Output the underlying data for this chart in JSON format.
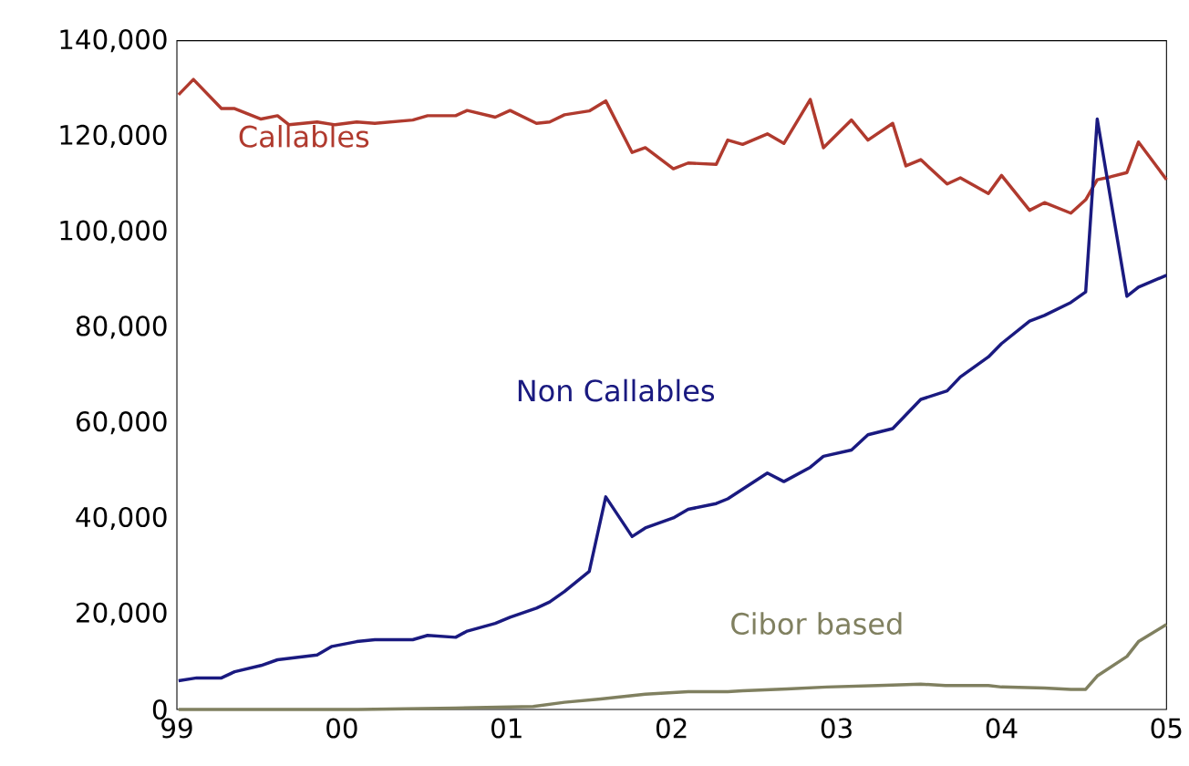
{
  "chart_data": {
    "type": "line",
    "xlim": [
      1999,
      2005
    ],
    "ylim": [
      0,
      140000
    ],
    "xticks": [
      {
        "value": 1999,
        "label": "99"
      },
      {
        "value": 2000,
        "label": "00"
      },
      {
        "value": 2001,
        "label": "01"
      },
      {
        "value": 2002,
        "label": "02"
      },
      {
        "value": 2003,
        "label": "03"
      },
      {
        "value": 2004,
        "label": "04"
      },
      {
        "value": 2005,
        "label": "05"
      }
    ],
    "yticks": [
      {
        "value": 0,
        "label": "0"
      },
      {
        "value": 20000,
        "label": "20,000"
      },
      {
        "value": 40000,
        "label": "40,000"
      },
      {
        "value": 60000,
        "label": "60,000"
      },
      {
        "value": 80000,
        "label": "80,000"
      },
      {
        "value": 100000,
        "label": "100,000"
      },
      {
        "value": 120000,
        "label": "120,000"
      },
      {
        "value": 140000,
        "label": "140,000"
      }
    ],
    "grid": false,
    "legend": false,
    "series": [
      {
        "name": "Callables",
        "color": "#b03a2e",
        "x": [
          1999.01,
          1999.1,
          1999.27,
          1999.35,
          1999.51,
          1999.61,
          1999.68,
          1999.85,
          1999.96,
          2000.09,
          2000.2,
          2000.43,
          2000.52,
          2000.69,
          2000.76,
          2000.93,
          2001.02,
          2001.18,
          2001.26,
          2001.35,
          2001.5,
          2001.6,
          2001.76,
          2001.84,
          2002.01,
          2002.1,
          2002.27,
          2002.34,
          2002.43,
          2002.58,
          2002.68,
          2002.84,
          2002.92,
          2003.09,
          2003.19,
          2003.34,
          2003.42,
          2003.51,
          2003.67,
          2003.75,
          2003.92,
          2004.0,
          2004.17,
          2004.26,
          2004.42,
          2004.51,
          2004.58,
          2004.66,
          2004.76,
          2004.83,
          2005.0
        ],
        "values": [
          128700,
          131900,
          125800,
          125800,
          123600,
          124300,
          122400,
          123000,
          122400,
          123000,
          122700,
          123400,
          124300,
          124300,
          125400,
          124000,
          125400,
          122700,
          123000,
          124500,
          125300,
          127400,
          116600,
          117600,
          113200,
          114400,
          114100,
          119200,
          118300,
          120500,
          118500,
          127700,
          117600,
          123400,
          119200,
          122700,
          113800,
          115100,
          110000,
          111300,
          108000,
          111800,
          104500,
          106100,
          103900,
          106700,
          110900,
          111500,
          112400,
          118800,
          110900
        ]
      },
      {
        "name": "Non Callables",
        "color": "#1a1a80",
        "x": [
          1999.01,
          1999.12,
          1999.27,
          1999.35,
          1999.51,
          1999.61,
          1999.85,
          1999.94,
          2000.09,
          2000.2,
          2000.43,
          2000.52,
          2000.69,
          2000.76,
          2000.93,
          2001.02,
          2001.18,
          2001.26,
          2001.35,
          2001.5,
          2001.6,
          2001.76,
          2001.84,
          2002.01,
          2002.1,
          2002.27,
          2002.34,
          2002.58,
          2002.68,
          2002.84,
          2002.92,
          2003.09,
          2003.19,
          2003.34,
          2003.51,
          2003.67,
          2003.75,
          2003.92,
          2004.0,
          2004.17,
          2004.26,
          2004.42,
          2004.51,
          2004.58,
          2004.76,
          2004.83,
          2005.0
        ],
        "values": [
          6000,
          6600,
          6600,
          7900,
          9200,
          10400,
          11400,
          13200,
          14200,
          14600,
          14600,
          15500,
          15100,
          16400,
          18000,
          19300,
          21200,
          22500,
          24700,
          28900,
          44500,
          36200,
          38000,
          40100,
          41900,
          43100,
          44100,
          49500,
          47700,
          50700,
          53000,
          54300,
          57500,
          58800,
          64900,
          66700,
          69600,
          73800,
          76600,
          81300,
          82500,
          85200,
          87400,
          123600,
          86500,
          88400,
          90900
        ]
      },
      {
        "name": "Cibor based",
        "color": "#808060",
        "x": [
          1999.01,
          2000.1,
          2000.69,
          2001.16,
          2001.35,
          2001.57,
          2001.84,
          2002.1,
          2002.34,
          2002.43,
          2002.7,
          2002.94,
          2003.25,
          2003.51,
          2003.66,
          2003.92,
          2004.0,
          2004.26,
          2004.42,
          2004.51,
          2004.58,
          2004.76,
          2004.83,
          2005.0
        ],
        "values": [
          0,
          0,
          300,
          600,
          1500,
          2200,
          3200,
          3700,
          3700,
          3900,
          4300,
          4700,
          5000,
          5300,
          5000,
          5000,
          4700,
          4500,
          4200,
          4200,
          7000,
          11100,
          14200,
          17800
        ]
      }
    ]
  }
}
